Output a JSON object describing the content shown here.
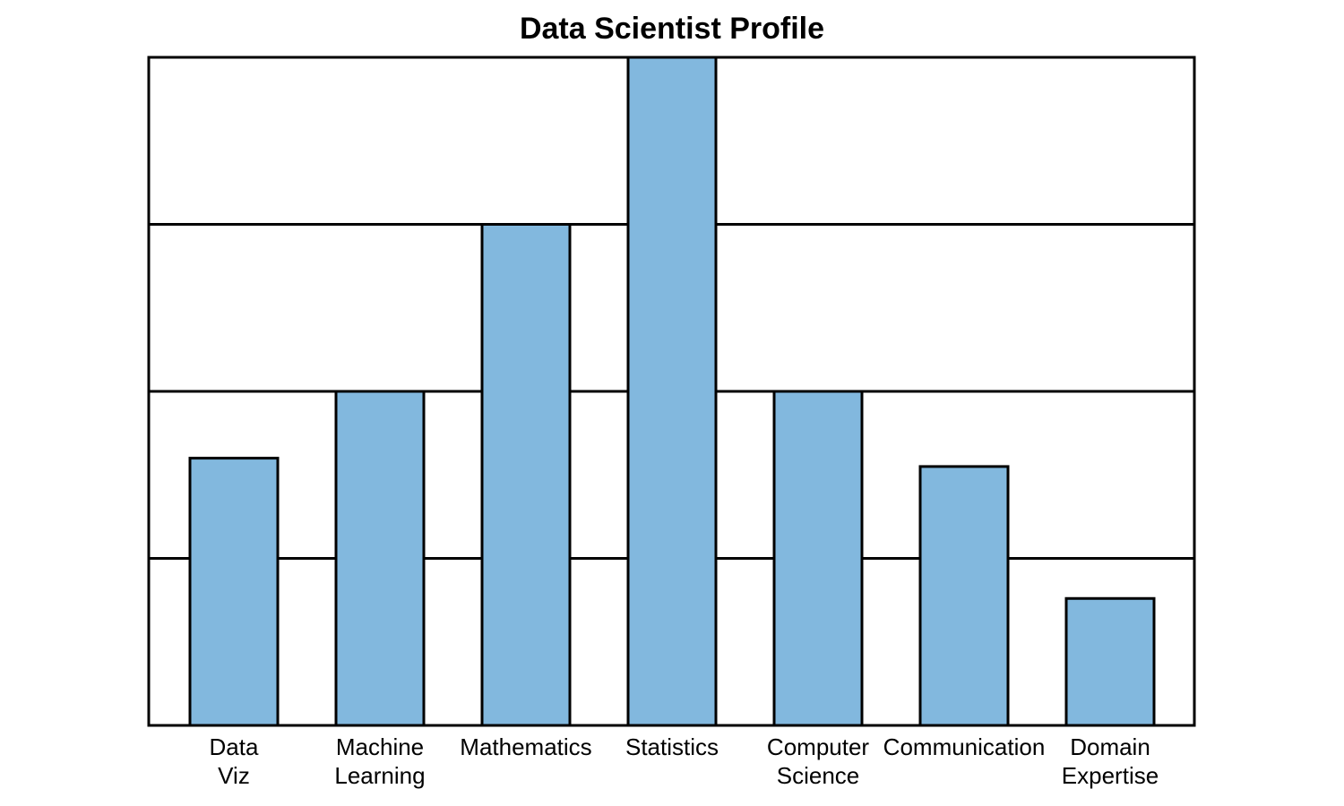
{
  "chart_data": {
    "type": "bar",
    "title": "Data Scientist Profile",
    "xlabel": "",
    "ylabel": "",
    "categories": [
      [
        "Data",
        "Viz"
      ],
      [
        "Machine",
        "Learning"
      ],
      [
        "Mathematics"
      ],
      [
        "Statistics"
      ],
      [
        "Computer",
        "Science"
      ],
      [
        "Communication"
      ],
      [
        "Domain",
        "Expertise"
      ]
    ],
    "values": [
      1.6,
      2.0,
      3.0,
      4.0,
      2.0,
      1.55,
      0.76
    ],
    "ylim": [
      0,
      4
    ],
    "grid": true,
    "y_ticks_labeled": false,
    "colors": {
      "bar_fill": "#82b8de",
      "bar_edge": "#000000",
      "grid": "#000000",
      "background": "#ffffff"
    }
  }
}
